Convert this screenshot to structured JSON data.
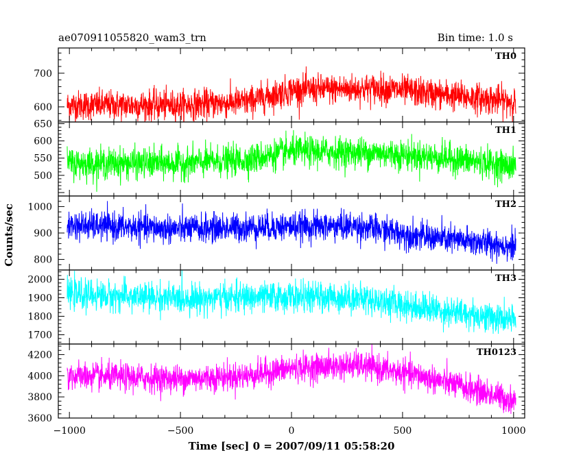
{
  "header": {
    "title": "ae070911055820_wam3_trn",
    "bin_time": "Bin time: 1.0 s"
  },
  "chart_data": {
    "type": "line",
    "xlabel": "Time [sec] 0 = 2007/09/11 05:58:20",
    "ylabel": "Counts/sec",
    "xlim": [
      -1050,
      1050
    ],
    "x_ticks": [
      -1000,
      -500,
      0,
      500,
      1000
    ],
    "x_range": [
      -1010,
      1010
    ],
    "grid": false,
    "panels": [
      {
        "name": "TH0",
        "color": "#ff0000",
        "ylim": [
          555,
          775
        ],
        "y_ticks": [
          600,
          700
        ],
        "baseline": [
          [
            -1010,
            605
          ],
          [
            -500,
            605
          ],
          [
            -200,
            615
          ],
          [
            0,
            650
          ],
          [
            400,
            655
          ],
          [
            700,
            635
          ],
          [
            1010,
            615
          ]
        ],
        "noise": 22
      },
      {
        "name": "TH1",
        "color": "#00ff00",
        "ylim": [
          440,
          655
        ],
        "y_ticks": [
          500,
          550,
          600,
          650
        ],
        "baseline": [
          [
            -1010,
            535
          ],
          [
            -500,
            535
          ],
          [
            -200,
            545
          ],
          [
            0,
            570
          ],
          [
            400,
            565
          ],
          [
            700,
            550
          ],
          [
            1010,
            525
          ]
        ],
        "noise": 22
      },
      {
        "name": "TH2",
        "color": "#0000ff",
        "ylim": [
          760,
          1040
        ],
        "y_ticks": [
          800,
          900,
          1000
        ],
        "baseline": [
          [
            -1010,
            930
          ],
          [
            -500,
            915
          ],
          [
            0,
            925
          ],
          [
            300,
            925
          ],
          [
            600,
            885
          ],
          [
            1010,
            850
          ]
        ],
        "noise": 27
      },
      {
        "name": "TH3",
        "color": "#00ffff",
        "ylim": [
          1650,
          2050
        ],
        "y_ticks": [
          1700,
          1800,
          1900,
          2000
        ],
        "baseline": [
          [
            -1010,
            1920
          ],
          [
            -500,
            1895
          ],
          [
            0,
            1905
          ],
          [
            300,
            1900
          ],
          [
            600,
            1845
          ],
          [
            1010,
            1775
          ]
        ],
        "noise": 40
      },
      {
        "name": "TH0123",
        "color": "#ff00ff",
        "ylim": [
          3600,
          4300
        ],
        "y_ticks": [
          3600,
          3800,
          4000,
          4200
        ],
        "baseline": [
          [
            -1010,
            4000
          ],
          [
            -500,
            3970
          ],
          [
            -200,
            4000
          ],
          [
            0,
            4070
          ],
          [
            300,
            4100
          ],
          [
            600,
            3990
          ],
          [
            1010,
            3760
          ]
        ],
        "noise": 65
      }
    ]
  }
}
